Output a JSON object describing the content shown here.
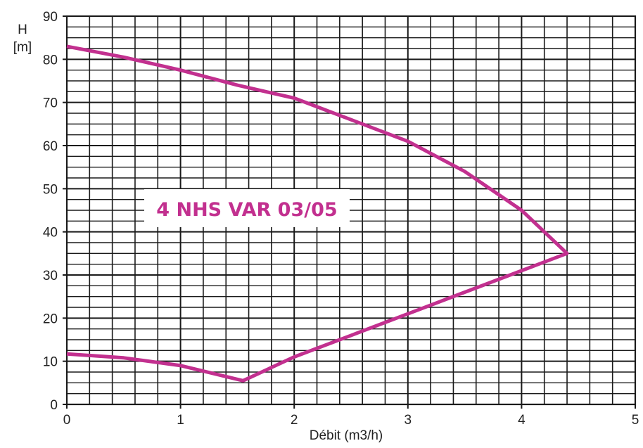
{
  "chart_data": {
    "type": "line",
    "title": "4 NHS VAR 03/05",
    "xlabel": "Débit  (m3/h)",
    "ylabel_line1": "H",
    "ylabel_line2": "[m]",
    "xlim": [
      0,
      5
    ],
    "ylim": [
      0,
      90
    ],
    "x_ticks": [
      0,
      1,
      2,
      3,
      4,
      5
    ],
    "x_tick_labels": [
      "0",
      "1",
      "2",
      "3",
      "4",
      "5"
    ],
    "y_ticks": [
      0,
      10,
      20,
      30,
      40,
      50,
      60,
      70,
      80,
      90
    ],
    "y_tick_labels": [
      "0",
      "10",
      "20",
      "30",
      "40",
      "50",
      "60",
      "70",
      "80",
      "90"
    ],
    "x_minor_step": 0.2,
    "y_minor_step": 2.5,
    "grid": true,
    "series": [
      {
        "color": "#c2308f",
        "points": [
          {
            "x": 0.0,
            "y": 83.0
          },
          {
            "x": 0.5,
            "y": 80.5
          },
          {
            "x": 1.0,
            "y": 77.5
          },
          {
            "x": 1.5,
            "y": 74.0
          },
          {
            "x": 2.0,
            "y": 71.0
          },
          {
            "x": 2.5,
            "y": 66.0
          },
          {
            "x": 3.0,
            "y": 61.0
          },
          {
            "x": 3.5,
            "y": 54.0
          },
          {
            "x": 4.0,
            "y": 45.0
          },
          {
            "x": 4.4,
            "y": 35.0
          },
          {
            "x": 3.5,
            "y": 26.0
          },
          {
            "x": 3.0,
            "y": 21.0
          },
          {
            "x": 2.5,
            "y": 16.0
          },
          {
            "x": 2.0,
            "y": 11.0
          },
          {
            "x": 1.55,
            "y": 5.5
          },
          {
            "x": 1.0,
            "y": 9.0
          },
          {
            "x": 0.5,
            "y": 10.8
          },
          {
            "x": 0.0,
            "y": 11.7
          }
        ]
      }
    ]
  },
  "colors": {
    "curve": "#c2308f",
    "grid": "#1a1a1a",
    "label_text": "#c2308f",
    "label_bg": "#ffffff"
  }
}
